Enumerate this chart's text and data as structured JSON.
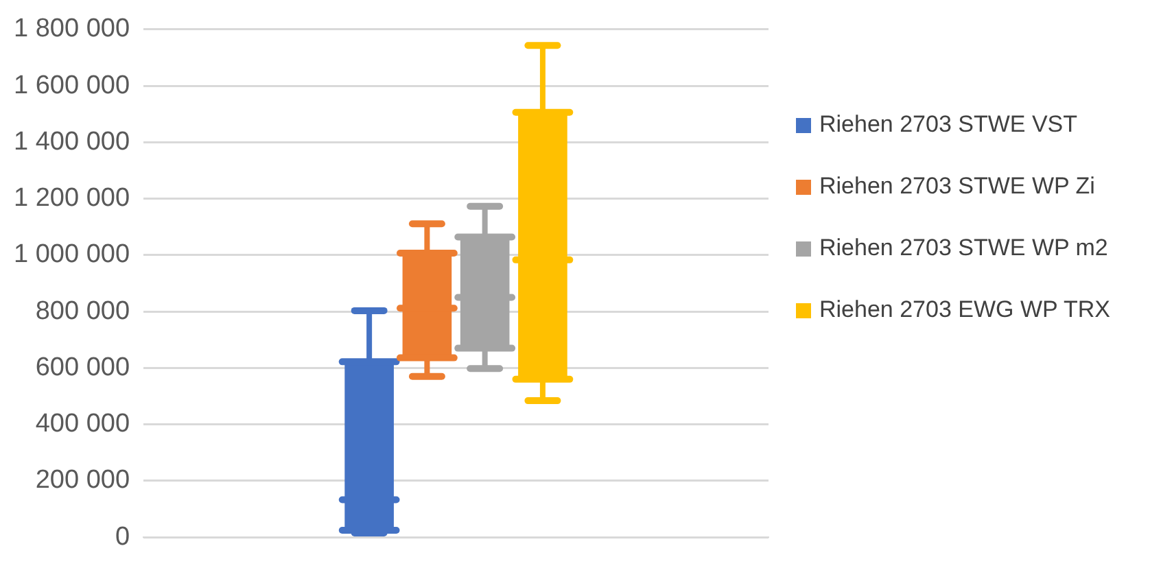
{
  "chart_data": {
    "type": "box",
    "categories": [
      null
    ],
    "series": [
      {
        "name": "Riehen 2703 STWE VST",
        "color": "#4472c4",
        "boxes": [
          {
            "low": 15000,
            "q1": 25000,
            "median": 133000,
            "q3": 622000,
            "high": 803000
          }
        ]
      },
      {
        "name": "Riehen 2703 STWE WP Zi",
        "color": "#ed7d31",
        "boxes": [
          {
            "low": 570000,
            "q1": 636000,
            "median": 812000,
            "q3": 1007000,
            "high": 1111000
          }
        ]
      },
      {
        "name": "Riehen 2703 STWE WP m2",
        "color": "#a5a5a5",
        "boxes": [
          {
            "low": 598000,
            "q1": 670000,
            "median": 850000,
            "q3": 1064000,
            "high": 1173000
          }
        ]
      },
      {
        "name": "Riehen 2703 EWG WP TRX",
        "color": "#ffc000",
        "boxes": [
          {
            "low": 484000,
            "q1": 560000,
            "median": 983000,
            "q3": 1506000,
            "high": 1743000
          }
        ]
      }
    ],
    "ylim": [
      0,
      1800000
    ],
    "yticks": [
      {
        "value": 0,
        "label": "0"
      },
      {
        "value": 200000,
        "label": "200 000"
      },
      {
        "value": 400000,
        "label": "400 000"
      },
      {
        "value": 600000,
        "label": "600 000"
      },
      {
        "value": 800000,
        "label": "800 000"
      },
      {
        "value": 1000000,
        "label": "1 000 000"
      },
      {
        "value": 1200000,
        "label": "1 200 000"
      },
      {
        "value": 1400000,
        "label": "1 400 000"
      },
      {
        "value": 1600000,
        "label": "1 600 000"
      },
      {
        "value": 1800000,
        "label": "1 800 000"
      }
    ],
    "grid": "y",
    "legend": "right"
  }
}
